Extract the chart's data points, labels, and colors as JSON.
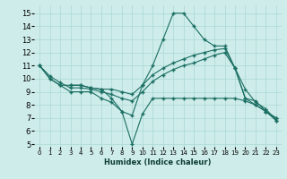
{
  "xlabel": "Humidex (Indice chaleur)",
  "xlim": [
    -0.5,
    23.5
  ],
  "ylim": [
    4.8,
    15.6
  ],
  "yticks": [
    5,
    6,
    7,
    8,
    9,
    10,
    11,
    12,
    13,
    14,
    15
  ],
  "xticks": [
    0,
    1,
    2,
    3,
    4,
    5,
    6,
    7,
    8,
    9,
    10,
    11,
    12,
    13,
    14,
    15,
    16,
    17,
    18,
    19,
    20,
    21,
    22,
    23
  ],
  "background_color": "#ceecea",
  "line_color": "#1a6e62",
  "grid_color": "#aad8d4",
  "series": [
    {
      "x": [
        0,
        1,
        2,
        3,
        4,
        5,
        6,
        7,
        8,
        9,
        10,
        11,
        12,
        13,
        14,
        15,
        16,
        17,
        18,
        19,
        20,
        21,
        22,
        23
      ],
      "y": [
        11,
        10,
        9.5,
        9,
        9,
        9,
        8.5,
        8.2,
        7.5,
        7.2,
        9.5,
        11.0,
        13.0,
        15.0,
        15.0,
        14.0,
        13.0,
        12.5,
        12.5,
        10.8,
        8.5,
        8.3,
        7.5,
        7.0
      ]
    },
    {
      "x": [
        0,
        1,
        2,
        3,
        4,
        5,
        6,
        7,
        8,
        9,
        10,
        11,
        12,
        13,
        14,
        15,
        16,
        17,
        18,
        19,
        20,
        21,
        22,
        23
      ],
      "y": [
        11,
        10,
        9.5,
        9.5,
        9.5,
        9.3,
        9.2,
        9.2,
        9.0,
        8.8,
        9.5,
        10.3,
        10.8,
        11.2,
        11.5,
        11.8,
        12.0,
        12.2,
        12.3,
        10.8,
        8.5,
        8.0,
        7.5,
        7.0
      ]
    },
    {
      "x": [
        0,
        1,
        2,
        3,
        4,
        5,
        6,
        7,
        8,
        9,
        10,
        11,
        12,
        13,
        14,
        15,
        16,
        17,
        18,
        19,
        20,
        21,
        22,
        23
      ],
      "y": [
        11,
        10.2,
        9.7,
        9.3,
        9.3,
        9.2,
        9.0,
        8.8,
        8.5,
        8.3,
        9.0,
        9.8,
        10.3,
        10.7,
        11.0,
        11.2,
        11.5,
        11.8,
        12.0,
        10.8,
        9.2,
        8.2,
        7.7,
        6.8
      ]
    },
    {
      "x": [
        3,
        4,
        5,
        6,
        7,
        8,
        9,
        10,
        11,
        12,
        13,
        14,
        15,
        16,
        17,
        18,
        19,
        20,
        21,
        22,
        23
      ],
      "y": [
        9.5,
        9.5,
        9.3,
        9.2,
        8.5,
        7.5,
        5.0,
        7.3,
        8.5,
        8.5,
        8.5,
        8.5,
        8.5,
        8.5,
        8.5,
        8.5,
        8.5,
        8.3,
        8.0,
        7.5,
        6.8
      ]
    }
  ]
}
